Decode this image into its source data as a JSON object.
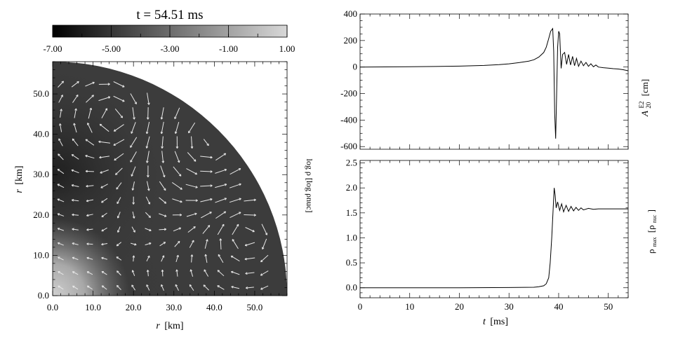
{
  "chart_data": [
    {
      "type": "heatmap",
      "title": "t = 54.51 ms",
      "colorbar": {
        "label": "log ρ [log ρnuc]",
        "ticks": [
          "-7.00",
          "-5.00",
          "-3.00",
          "-1.00",
          "1.00"
        ],
        "range": [
          -7,
          1
        ]
      },
      "xlabel_var": "r",
      "xlabel_unit": "[km]",
      "ylabel_var": "r",
      "ylabel_unit": "[km]",
      "xlim": [
        0,
        58
      ],
      "ylim": [
        0,
        58
      ],
      "xticks": [
        "0.0",
        "10.0",
        "20.0",
        "30.0",
        "40.0",
        "50.0"
      ],
      "yticks": [
        "0.0",
        "10.0",
        "20.0",
        "30.0",
        "40.0",
        "50.0"
      ],
      "domain": "quarter circle, radius 58 km",
      "overlay": "velocity field arrows (white)",
      "density_peaks": [
        {
          "x": 5,
          "y": 5,
          "log_rho": 0.5
        },
        {
          "x": 8,
          "y": 19,
          "log_rho": -3.2
        }
      ]
    },
    {
      "type": "line",
      "ylabel_main": "A",
      "ylabel_sub": "20",
      "ylabel_sup": "E2",
      "ylabel_unit": "[cm]",
      "xlim": [
        0,
        54
      ],
      "ylim": [
        -620,
        400
      ],
      "xticks": [
        "0",
        "10",
        "20",
        "30",
        "40",
        "50"
      ],
      "yticks": [
        "400",
        "200",
        "0",
        "-200",
        "-400",
        "-600"
      ],
      "series": [
        {
          "x": [
            0,
            5,
            10,
            15,
            20,
            25,
            28,
            30,
            32,
            34,
            35,
            36,
            37,
            37.5,
            38,
            38.4,
            38.8,
            39.0,
            39.2,
            39.4,
            39.6,
            39.8,
            40.0,
            40.2,
            40.5,
            40.8,
            41.2,
            41.6,
            42.0,
            42.4,
            42.8,
            43.2,
            43.6,
            44.0,
            44.5,
            45.0,
            45.5,
            46.0,
            46.5,
            47.0,
            47.5,
            48.0,
            49.0,
            50.0,
            51.0,
            52.0,
            53.0,
            54.0
          ],
          "y": [
            0,
            1,
            2,
            4,
            7,
            12,
            18,
            24,
            33,
            45,
            55,
            75,
            110,
            150,
            215,
            270,
            290,
            120,
            -350,
            -540,
            -200,
            150,
            270,
            250,
            -10,
            95,
            110,
            20,
            95,
            15,
            80,
            10,
            65,
            5,
            45,
            10,
            35,
            5,
            25,
            2,
            15,
            0,
            -5,
            -8,
            -12,
            -15,
            -20,
            -28
          ]
        }
      ]
    },
    {
      "type": "line",
      "ylabel_main": "ρ",
      "ylabel_sub": "max",
      "ylabel_unit_main": "[ρ",
      "ylabel_unit_sub": "nuc",
      "ylabel_unit_end": "]",
      "xlabel_var": "t",
      "xlabel_unit": "[ms]",
      "xlim": [
        0,
        54
      ],
      "ylim": [
        -0.2,
        2.55
      ],
      "xticks": [
        "0",
        "10",
        "20",
        "30",
        "40",
        "50"
      ],
      "yticks": [
        "2.5",
        "2.0",
        "1.5",
        "1.0",
        "0.5",
        "0.0"
      ],
      "series": [
        {
          "x": [
            0,
            10,
            20,
            30,
            35,
            36,
            37,
            37.5,
            38,
            38.3,
            38.6,
            38.9,
            39.1,
            39.3,
            39.5,
            39.8,
            40.2,
            40.6,
            41.0,
            41.5,
            42.0,
            42.5,
            43.0,
            43.5,
            44.0,
            44.5,
            45.0,
            46.0,
            47.0,
            48.0,
            50.0,
            52.0,
            54.0
          ],
          "y": [
            0,
            0,
            0,
            0.005,
            0.01,
            0.02,
            0.04,
            0.08,
            0.2,
            0.5,
            1.0,
            1.6,
            2.0,
            1.85,
            1.6,
            1.72,
            1.55,
            1.68,
            1.52,
            1.65,
            1.53,
            1.63,
            1.54,
            1.61,
            1.55,
            1.6,
            1.56,
            1.59,
            1.57,
            1.58,
            1.58,
            1.58,
            1.58
          ]
        }
      ]
    }
  ]
}
